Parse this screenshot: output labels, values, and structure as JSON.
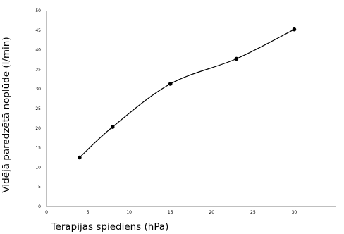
{
  "chart_data": {
    "type": "line",
    "title": "",
    "xlabel": "Terapijas spiediens (hPa)",
    "ylabel": "Vidējā paredzētā noplūde (l/min)",
    "xlim": [
      0,
      35
    ],
    "ylim": [
      0,
      50
    ],
    "x_ticks": [
      "0",
      "5",
      "10",
      "15",
      "20",
      "25",
      "30"
    ],
    "y_ticks": [
      "0",
      "5",
      "10",
      "15",
      "20",
      "25",
      "30",
      "35",
      "40",
      "45",
      "50"
    ],
    "smooth": true,
    "markers": true,
    "grid": false,
    "legend": "none",
    "series": [
      {
        "x": [
          4,
          8,
          15,
          23,
          30
        ],
        "y": [
          12.5,
          20.3,
          31.3,
          37.7,
          45.2
        ],
        "color": "#000000"
      }
    ]
  }
}
